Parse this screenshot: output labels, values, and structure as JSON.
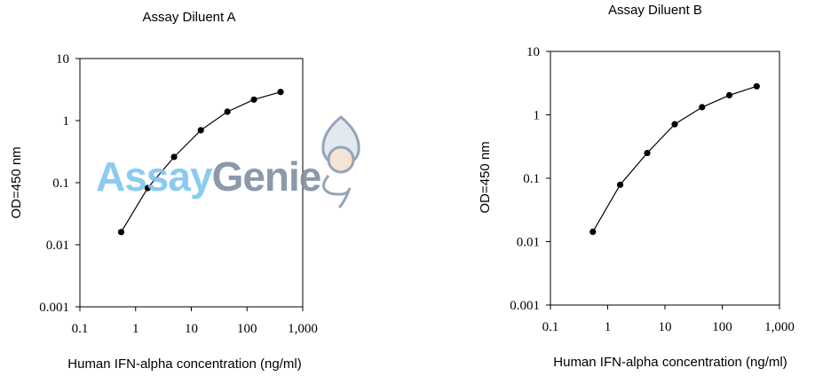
{
  "watermark": {
    "part1": "Assay",
    "part2": "Genie",
    "color1": "#7fc6ee",
    "color2": "#7f8fa3"
  },
  "chart_data": [
    {
      "type": "line",
      "title": "Assay Diluent A",
      "xlabel": "Human IFN-alpha concentration (ng/ml)",
      "ylabel": "OD=450 nm",
      "xscale": "log",
      "yscale": "log",
      "xlim": [
        0.1,
        1000
      ],
      "ylim": [
        0.001,
        10
      ],
      "xticks": [
        "0.1",
        "1",
        "10",
        "100",
        "1,000"
      ],
      "yticks": [
        "0.001",
        "0.01",
        "0.1",
        "1",
        "10"
      ],
      "grid": false,
      "markers": "filled-circle",
      "color": "#000000",
      "x": [
        0.55,
        1.65,
        4.9,
        14.8,
        44.4,
        133,
        400
      ],
      "y": [
        0.016,
        0.082,
        0.26,
        0.7,
        1.39,
        2.18,
        2.89
      ]
    },
    {
      "type": "line",
      "title": "Assay Diluent B",
      "xlabel": "Human IFN-alpha concentration (ng/ml)",
      "ylabel": "OD=450 nm",
      "xscale": "log",
      "yscale": "log",
      "xlim": [
        0.1,
        1000
      ],
      "ylim": [
        0.001,
        10
      ],
      "xticks": [
        "0.1",
        "1",
        "10",
        "100",
        "1,000"
      ],
      "yticks": [
        "0.001",
        "0.01",
        "0.1",
        "1",
        "10"
      ],
      "grid": false,
      "markers": "filled-circle",
      "color": "#000000",
      "x": [
        0.55,
        1.65,
        4.9,
        14.8,
        44.4,
        133,
        400
      ],
      "y": [
        0.0143,
        0.079,
        0.25,
        0.71,
        1.32,
        2.04,
        2.82
      ]
    }
  ]
}
